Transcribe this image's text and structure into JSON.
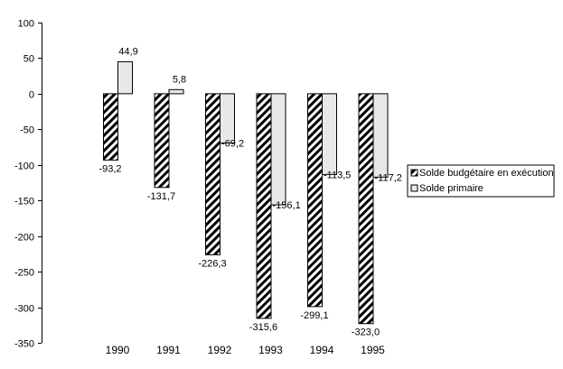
{
  "chart_data": {
    "type": "bar",
    "title": "",
    "xlabel": "",
    "ylabel": "",
    "categories": [
      "1990",
      "1991",
      "1992",
      "1993",
      "1994",
      "1995"
    ],
    "series": [
      {
        "name": "Solde budgétaire en exécution",
        "values": [
          -93.2,
          -131.7,
          -226.3,
          -315.6,
          -299.1,
          -323.0
        ],
        "labels": [
          "-93,2",
          "-131,7",
          "-226,3",
          "-315,6",
          "-299,1",
          "-323,0"
        ],
        "pattern": "diagonal-hatch",
        "color": "#000000"
      },
      {
        "name": "Solde primaire",
        "values": [
          44.9,
          5.8,
          -69.2,
          -156.1,
          -113.5,
          -117.2
        ],
        "labels": [
          "44,9",
          "5,8",
          "-69,2",
          "-156,1",
          "-113,5",
          "-117,2"
        ],
        "pattern": "solid",
        "color": "#e8e8e8"
      }
    ],
    "ylim": [
      -350,
      100
    ],
    "yticks": [
      "100",
      "50",
      "0",
      "-50",
      "-100",
      "-150",
      "-200",
      "-250",
      "-300",
      "-350"
    ],
    "ytick_values": [
      100,
      50,
      0,
      -50,
      -100,
      -150,
      -200,
      -250,
      -300,
      -350
    ],
    "grid": false,
    "legend_position": "right"
  }
}
